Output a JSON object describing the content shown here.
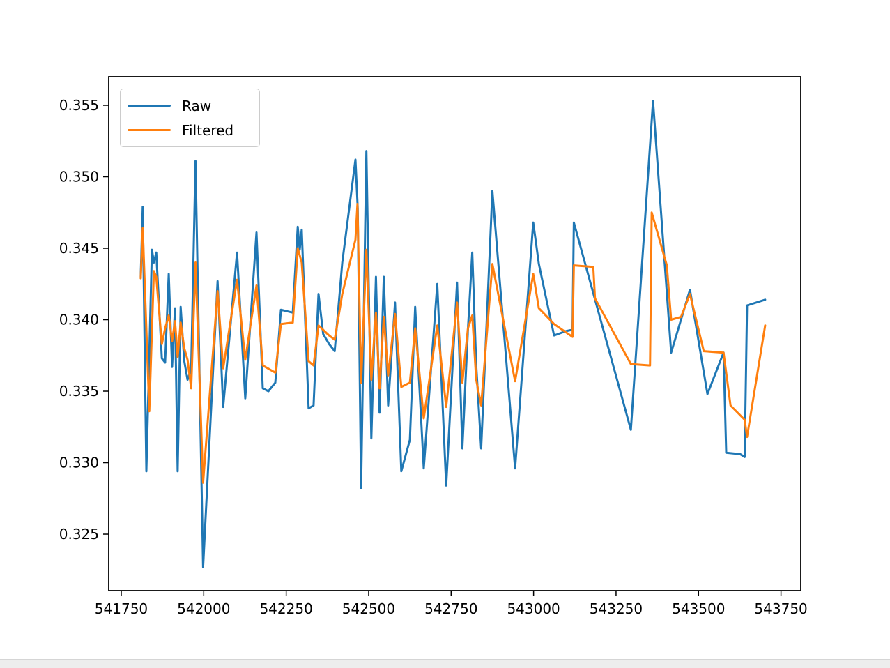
{
  "chart_data": {
    "type": "line",
    "title": "",
    "xlabel": "",
    "ylabel": "",
    "grid": false,
    "x_axis": {
      "domain": [
        541712,
        543810
      ],
      "ticks": [
        541750,
        542000,
        542250,
        542500,
        542750,
        543000,
        543250,
        543500,
        543750
      ],
      "tick_labels": [
        "541750",
        "542000",
        "542250",
        "542500",
        "542750",
        "543000",
        "543250",
        "543500",
        "543750"
      ]
    },
    "y_axis": {
      "domain": [
        0.32105,
        0.357
      ],
      "ticks": [
        0.325,
        0.33,
        0.335,
        0.34,
        0.345,
        0.35,
        0.355
      ],
      "tick_labels": [
        "0.325",
        "0.330",
        "0.335",
        "0.340",
        "0.345",
        "0.350",
        "0.355"
      ]
    },
    "legend": {
      "position": "upper-left",
      "entries": [
        {
          "label": "Raw",
          "color": "#1f77b4"
        },
        {
          "label": "Filtered",
          "color": "#ff7f0e"
        }
      ]
    },
    "line_width": 3,
    "series": [
      {
        "name": "Raw",
        "color": "#1f77b4",
        "points": [
          [
            541809,
            0.343
          ],
          [
            541815,
            0.3479
          ],
          [
            541826,
            0.3294
          ],
          [
            541843,
            0.3449
          ],
          [
            541849,
            0.344
          ],
          [
            541856,
            0.3447
          ],
          [
            541873,
            0.3373
          ],
          [
            541883,
            0.337
          ],
          [
            541894,
            0.3432
          ],
          [
            541904,
            0.3367
          ],
          [
            541913,
            0.3408
          ],
          [
            541921,
            0.3294
          ],
          [
            541930,
            0.3409
          ],
          [
            541941,
            0.3371
          ],
          [
            541951,
            0.3358
          ],
          [
            541962,
            0.3365
          ],
          [
            541975,
            0.3511
          ],
          [
            541998,
            0.3227
          ],
          [
            542042,
            0.3427
          ],
          [
            542059,
            0.3339
          ],
          [
            542101,
            0.3447
          ],
          [
            542126,
            0.3345
          ],
          [
            542160,
            0.3461
          ],
          [
            542179,
            0.3352
          ],
          [
            542196,
            0.335
          ],
          [
            542217,
            0.3356
          ],
          [
            542234,
            0.3407
          ],
          [
            542270,
            0.3405
          ],
          [
            542285,
            0.3465
          ],
          [
            542291,
            0.3449
          ],
          [
            542297,
            0.3463
          ],
          [
            542318,
            0.3338
          ],
          [
            542333,
            0.334
          ],
          [
            542348,
            0.3418
          ],
          [
            542362,
            0.339
          ],
          [
            542380,
            0.3383
          ],
          [
            542397,
            0.3378
          ],
          [
            542420,
            0.344
          ],
          [
            542460,
            0.3512
          ],
          [
            542467,
            0.3478
          ],
          [
            542477,
            0.3282
          ],
          [
            542493,
            0.3518
          ],
          [
            542508,
            0.3317
          ],
          [
            542522,
            0.343
          ],
          [
            542533,
            0.3335
          ],
          [
            542546,
            0.343
          ],
          [
            542559,
            0.334
          ],
          [
            542580,
            0.3412
          ],
          [
            542599,
            0.3294
          ],
          [
            542625,
            0.3316
          ],
          [
            542641,
            0.3409
          ],
          [
            542667,
            0.3296
          ],
          [
            542708,
            0.3425
          ],
          [
            542735,
            0.3284
          ],
          [
            542768,
            0.3426
          ],
          [
            542784,
            0.331
          ],
          [
            542801,
            0.3393
          ],
          [
            542814,
            0.3447
          ],
          [
            542826,
            0.3368
          ],
          [
            542841,
            0.331
          ],
          [
            542875,
            0.349
          ],
          [
            542944,
            0.3296
          ],
          [
            542999,
            0.3468
          ],
          [
            543016,
            0.3439
          ],
          [
            543062,
            0.3389
          ],
          [
            543098,
            0.3392
          ],
          [
            543118,
            0.3393
          ],
          [
            543122,
            0.3468
          ],
          [
            543295,
            0.3323
          ],
          [
            543362,
            0.3553
          ],
          [
            543417,
            0.3377
          ],
          [
            543474,
            0.3421
          ],
          [
            543527,
            0.3348
          ],
          [
            543576,
            0.3377
          ],
          [
            543584,
            0.3307
          ],
          [
            543626,
            0.3306
          ],
          [
            543640,
            0.3304
          ],
          [
            543647,
            0.341
          ],
          [
            543702,
            0.3414
          ]
        ]
      },
      {
        "name": "Filtered",
        "color": "#ff7f0e",
        "points": [
          [
            541809,
            0.3429
          ],
          [
            541815,
            0.3464
          ],
          [
            541835,
            0.3336
          ],
          [
            541849,
            0.3434
          ],
          [
            541856,
            0.343
          ],
          [
            541873,
            0.3383
          ],
          [
            541883,
            0.3394
          ],
          [
            541894,
            0.3403
          ],
          [
            541904,
            0.3385
          ],
          [
            541913,
            0.3399
          ],
          [
            541921,
            0.3374
          ],
          [
            541930,
            0.3398
          ],
          [
            541941,
            0.338
          ],
          [
            541951,
            0.3372
          ],
          [
            541962,
            0.3352
          ],
          [
            541975,
            0.344
          ],
          [
            541998,
            0.3286
          ],
          [
            542042,
            0.342
          ],
          [
            542059,
            0.3366
          ],
          [
            542101,
            0.3428
          ],
          [
            542126,
            0.3372
          ],
          [
            542160,
            0.3424
          ],
          [
            542179,
            0.3368
          ],
          [
            542217,
            0.3363
          ],
          [
            542234,
            0.3397
          ],
          [
            542270,
            0.3398
          ],
          [
            542285,
            0.345
          ],
          [
            542297,
            0.344
          ],
          [
            542318,
            0.3371
          ],
          [
            542333,
            0.3368
          ],
          [
            542348,
            0.3396
          ],
          [
            542380,
            0.3389
          ],
          [
            542397,
            0.3386
          ],
          [
            542420,
            0.3418
          ],
          [
            542460,
            0.3456
          ],
          [
            542466,
            0.3481
          ],
          [
            542477,
            0.3356
          ],
          [
            542493,
            0.3449
          ],
          [
            542508,
            0.3358
          ],
          [
            542522,
            0.3405
          ],
          [
            542533,
            0.3352
          ],
          [
            542546,
            0.3402
          ],
          [
            542559,
            0.3361
          ],
          [
            542580,
            0.3404
          ],
          [
            542599,
            0.3353
          ],
          [
            542625,
            0.3356
          ],
          [
            542641,
            0.3394
          ],
          [
            542667,
            0.3331
          ],
          [
            542708,
            0.3396
          ],
          [
            542735,
            0.3339
          ],
          [
            542768,
            0.3412
          ],
          [
            542784,
            0.3356
          ],
          [
            542801,
            0.3394
          ],
          [
            542814,
            0.3403
          ],
          [
            542826,
            0.3358
          ],
          [
            542841,
            0.334
          ],
          [
            542875,
            0.3439
          ],
          [
            542944,
            0.3357
          ],
          [
            542999,
            0.3432
          ],
          [
            543016,
            0.3408
          ],
          [
            543062,
            0.3397
          ],
          [
            543118,
            0.3388
          ],
          [
            543122,
            0.3438
          ],
          [
            543181,
            0.3437
          ],
          [
            543186,
            0.3415
          ],
          [
            543295,
            0.3369
          ],
          [
            543353,
            0.3368
          ],
          [
            543358,
            0.3475
          ],
          [
            543404,
            0.3438
          ],
          [
            543417,
            0.34
          ],
          [
            543447,
            0.3402
          ],
          [
            543474,
            0.3418
          ],
          [
            543516,
            0.3378
          ],
          [
            543576,
            0.3377
          ],
          [
            543597,
            0.334
          ],
          [
            543640,
            0.333
          ],
          [
            543647,
            0.3318
          ],
          [
            543702,
            0.3396
          ]
        ]
      }
    ]
  },
  "legend_ui": {
    "raw_label": "Raw",
    "filtered_label": "Filtered"
  },
  "style": {
    "spine_color": "#000000",
    "tick_color": "#000000",
    "label_color": "#000000",
    "background": "#ffffff"
  }
}
